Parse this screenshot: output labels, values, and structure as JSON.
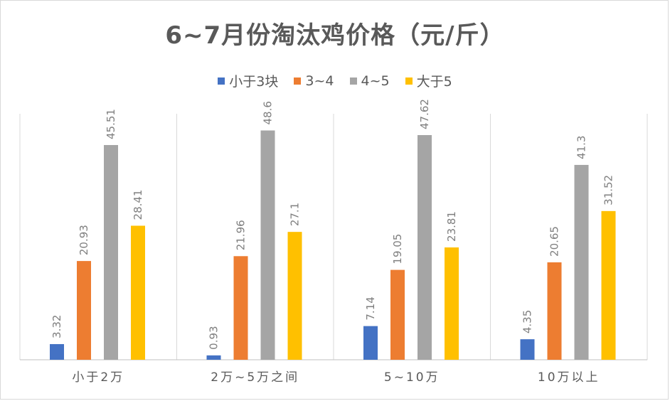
{
  "chart_data": {
    "type": "bar",
    "title": "6~7月份淘汰鸡价格（元/斤）",
    "categories": [
      "小于2万",
      "2万~5万之间",
      "5~10万",
      "10万以上"
    ],
    "series": [
      {
        "name": "小于3块",
        "color": "#4472c4",
        "values": [
          3.32,
          0.93,
          7.14,
          4.35
        ]
      },
      {
        "name": "3~4",
        "color": "#ed7d31",
        "values": [
          20.93,
          21.96,
          19.05,
          20.65
        ]
      },
      {
        "name": "4~5",
        "color": "#a5a5a5",
        "values": [
          45.51,
          48.6,
          47.62,
          41.3
        ]
      },
      {
        "name": "大于5",
        "color": "#ffc000",
        "values": [
          28.41,
          27.1,
          23.81,
          31.52
        ]
      }
    ],
    "value_labels": [
      [
        "3.32",
        "0.93",
        "7.14",
        "4.35"
      ],
      [
        "20.93",
        "21.96",
        "19.05",
        "20.65"
      ],
      [
        "45.51",
        "48.6",
        "47.62",
        "41.3"
      ],
      [
        "28.41",
        "27.1",
        "23.81",
        "31.52"
      ]
    ],
    "ylim": [
      0,
      52
    ],
    "legend_position": "top",
    "grid": false
  }
}
